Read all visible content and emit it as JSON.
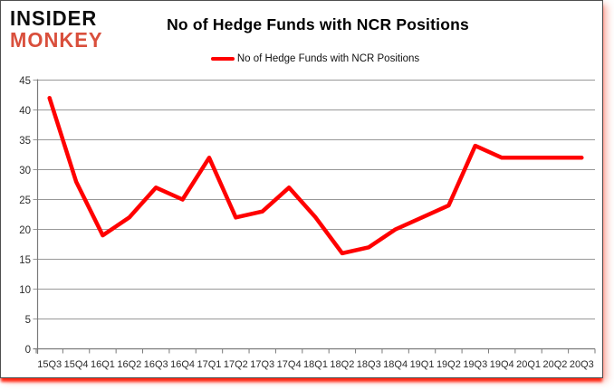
{
  "logo": {
    "line1": "INSIDER",
    "line2": "MONKEY"
  },
  "chart_data": {
    "type": "line",
    "title": "No of Hedge Funds with NCR Positions",
    "series_name": "No of Hedge Funds with NCR Positions",
    "categories": [
      "15Q3",
      "15Q4",
      "16Q1",
      "16Q2",
      "16Q3",
      "16Q4",
      "17Q1",
      "17Q2",
      "17Q3",
      "17Q4",
      "18Q1",
      "18Q2",
      "18Q3",
      "18Q4",
      "19Q1",
      "19Q2",
      "19Q3",
      "19Q4",
      "20Q1",
      "20Q2",
      "20Q3"
    ],
    "values": [
      42,
      28,
      19,
      22,
      27,
      25,
      32,
      22,
      23,
      27,
      22,
      16,
      17,
      20,
      22,
      24,
      34,
      32,
      32,
      32,
      32
    ],
    "xlabel": "",
    "ylabel": "",
    "ylim": [
      0,
      45
    ],
    "ytick_step": 5,
    "grid": true,
    "legend_position": "top-center",
    "line_color": "#ff0000"
  },
  "colors": {
    "accent_red": "#ff0000",
    "logo_red": "#d94f3c",
    "grid": "#989898",
    "axis": "#7a7a7a",
    "tick_text": "#2b2b2b",
    "frame_border": "#4f4f4f"
  }
}
